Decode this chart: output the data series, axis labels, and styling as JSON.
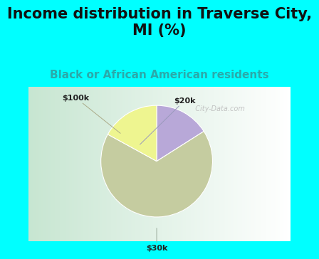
{
  "title": "Income distribution in Traverse City,\nMI (%)",
  "subtitle": "Black or African American residents",
  "slices": [
    {
      "label": "$20k",
      "value": 16,
      "color": "#b8a8d8"
    },
    {
      "label": "$30k",
      "value": 67,
      "color": "#c5cca0"
    },
    {
      "label": "$100k",
      "value": 17,
      "color": "#eef590"
    }
  ],
  "title_fontsize": 15,
  "subtitle_fontsize": 11,
  "title_color": "#111111",
  "subtitle_color": "#2aaaaa",
  "bg_color": "#00ffff",
  "chart_bg_left": "#c8eedd",
  "chart_bg_right": "#ffffff",
  "watermark_text": "  City-Data.com",
  "watermark_color": "#bbbbbb",
  "label_fontsize": 8,
  "label_color": "#222222"
}
